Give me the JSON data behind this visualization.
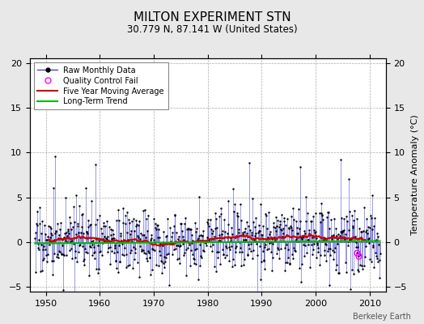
{
  "title": "MILTON EXPERIMENT STN",
  "subtitle": "30.779 N, 87.141 W (United States)",
  "ylabel": "Temperature Anomaly (°C)",
  "watermark": "Berkeley Earth",
  "xlim": [
    1947,
    2013
  ],
  "ylim": [
    -5.5,
    20.5
  ],
  "yticks": [
    -5,
    0,
    5,
    10,
    15,
    20
  ],
  "xticks": [
    1950,
    1960,
    1970,
    1980,
    1990,
    2000,
    2010
  ],
  "bg_color": "#e8e8e8",
  "plot_bg_color": "#ffffff",
  "raw_line_color": "#4444cc",
  "raw_marker_color": "#000000",
  "mavg_color": "#cc0000",
  "trend_color": "#00bb00",
  "qc_fail_color": "#ff00ff",
  "seed": 17,
  "start_year": 1948,
  "end_year": 2011,
  "noise_scale": 1.8,
  "spike_up_prob": 0.012,
  "spike_up_range": [
    5,
    10
  ],
  "mavg_window": 60,
  "qc_year": 2007,
  "qc_month": 8
}
